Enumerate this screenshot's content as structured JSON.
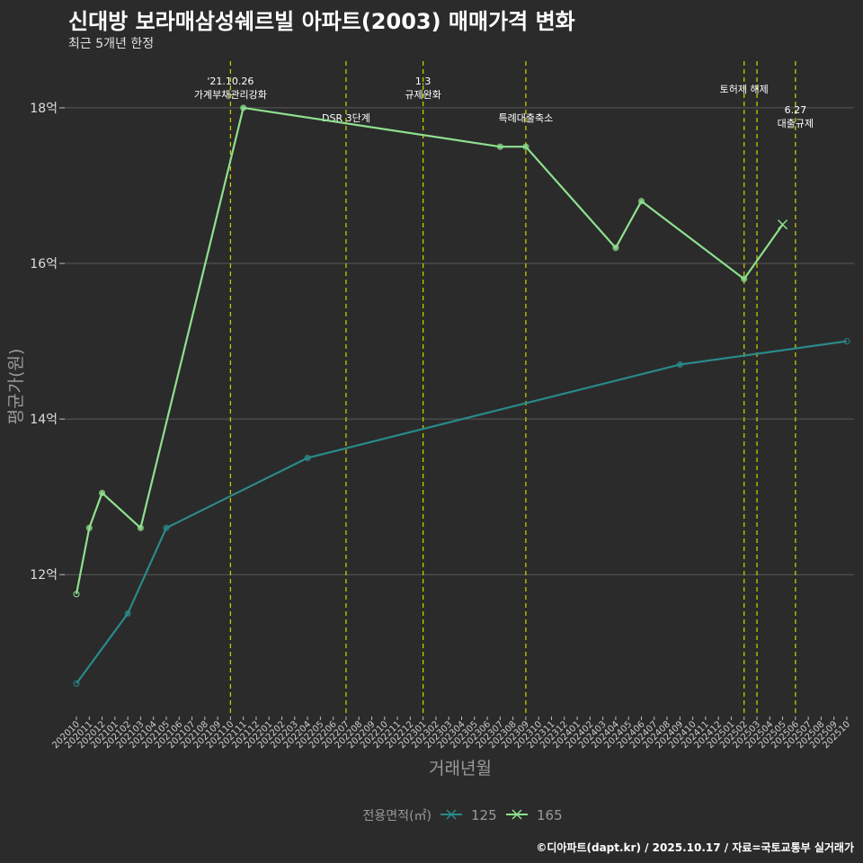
{
  "header": {
    "title": "신대방 보라매삼성쉐르빌 아파트(2003) 매매가격 변화",
    "subtitle": "최근 5개년 한정"
  },
  "footer": {
    "credit": "©디아파트(dapt.kr) / 2025.10.17 / 자료=국토교통부 실거래가"
  },
  "colors": {
    "background": "#2b2b2b",
    "grid": "#5a5a5a",
    "vline": "#c8c800",
    "series_125": "#2a8a8a",
    "series_165": "#8ee08e"
  },
  "chart_data": {
    "type": "line",
    "title": "신대방 보라매삼성쉐르빌 아파트(2003) 매매가격 변화",
    "subtitle": "최근 5개년 한정",
    "xlabel": "거래년월",
    "ylabel": "평균가(원)",
    "ylim": [
      10.2,
      18.6
    ],
    "yticks": [
      12,
      14,
      16,
      18
    ],
    "ytick_labels": [
      "12억",
      "14억",
      "16억",
      "18억"
    ],
    "categories": [
      "202010",
      "202011",
      "202012",
      "202101",
      "202102",
      "202103",
      "202104",
      "202105",
      "202106",
      "202107",
      "202108",
      "202109",
      "202110",
      "202111",
      "202112",
      "202201",
      "202202",
      "202203",
      "202204",
      "202205",
      "202206",
      "202207",
      "202208",
      "202209",
      "202210",
      "202211",
      "202212",
      "202301",
      "202302",
      "202303",
      "202304",
      "202305",
      "202306",
      "202307",
      "202308",
      "202309",
      "202310",
      "202311",
      "202312",
      "202401",
      "202402",
      "202403",
      "202404",
      "202405",
      "202406",
      "202407",
      "202408",
      "202409",
      "202410",
      "202411",
      "202412",
      "202501",
      "202502",
      "202503",
      "202504",
      "202505",
      "202506",
      "202507",
      "202508",
      "202509",
      "202510"
    ],
    "legend_title": "전용면적(㎡)",
    "legend_position": "bottom",
    "series": [
      {
        "name": "125",
        "color": "#2a8a8a",
        "points": [
          [
            "202010",
            10.6
          ],
          [
            "202102",
            11.5
          ],
          [
            "202105",
            12.6
          ],
          [
            "202204",
            13.5
          ],
          [
            "202409",
            14.7
          ],
          [
            "202510",
            15.0
          ]
        ],
        "hollow": [
          [
            "202010",
            10.6
          ],
          [
            "202510",
            15.0
          ]
        ]
      },
      {
        "name": "165",
        "color": "#8ee08e",
        "points": [
          [
            "202010",
            11.75
          ],
          [
            "202011",
            12.6
          ],
          [
            "202012",
            13.05
          ],
          [
            "202103",
            12.6
          ],
          [
            "202111",
            18.0
          ],
          [
            "202307",
            17.5
          ],
          [
            "202309",
            17.5
          ],
          [
            "202404",
            16.2
          ],
          [
            "202406",
            16.8
          ],
          [
            "202502",
            15.8
          ],
          [
            "202505",
            16.5
          ]
        ],
        "hollow": [
          [
            "202010",
            11.75
          ]
        ],
        "cross": [
          [
            "202505",
            16.5
          ]
        ]
      }
    ],
    "annotations": [
      {
        "x": "202110",
        "lines": [
          "'21.10.26",
          "가계부채관리강화"
        ],
        "row": "top"
      },
      {
        "x": "202207",
        "lines": [
          "DSR 3단계"
        ],
        "row": "mid"
      },
      {
        "x": "202301",
        "lines": [
          "1.3",
          "규제완화"
        ],
        "row": "top"
      },
      {
        "x": "202309",
        "lines": [
          "특례대출축소"
        ],
        "row": "mid"
      },
      {
        "x": "202502",
        "lines": [
          "토허제 해제"
        ],
        "row": "top2"
      },
      {
        "x": "202503",
        "lines": [],
        "row": "none"
      },
      {
        "x": "202506",
        "lines": [
          "6.27",
          "대출규제"
        ],
        "row": "low"
      }
    ]
  }
}
